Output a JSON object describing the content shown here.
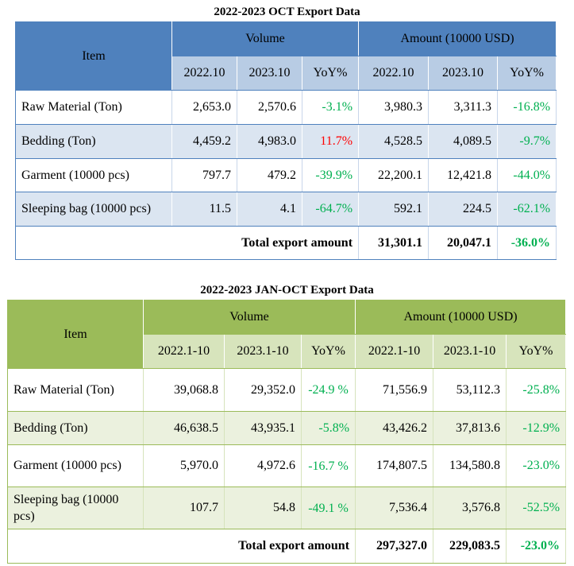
{
  "table1": {
    "title": "2022-2023 OCT Export Data",
    "item_header": "Item",
    "volume_header": "Volume",
    "amount_header": "Amount (10000 USD)",
    "subheaders": [
      "2022.10",
      "2023.10",
      "YoY%",
      "2022.10",
      "2023.10",
      "YoY%"
    ],
    "rows": [
      {
        "item": "Raw Material (Ton)",
        "v1": "2,653.0",
        "v2": "2,570.6",
        "vy": "-3.1%",
        "a1": "3,980.3",
        "a2": "3,311.3",
        "ay": "-16.8%"
      },
      {
        "item": "Bedding (Ton)",
        "v1": "4,459.2",
        "v2": "4,983.0",
        "vy": "11.7%",
        "a1": "4,528.5",
        "a2": "4,089.5",
        "ay": "-9.7%"
      },
      {
        "item": "Garment (10000 pcs)",
        "v1": "797.7",
        "v2": "479.2",
        "vy": "-39.9%",
        "a1": "22,200.1",
        "a2": "12,421.8",
        "ay": "-44.0%"
      },
      {
        "item": "Sleeping bag (10000 pcs)",
        "v1": "11.5",
        "v2": "4.1",
        "vy": "-64.7%",
        "a1": "592.1",
        "a2": "224.5",
        "ay": "-62.1%"
      }
    ],
    "total": {
      "label": "Total  export  amount",
      "a1": "31,301.1",
      "a2": "20,047.1",
      "ay": "-36.0%"
    }
  },
  "table2": {
    "title": "2022-2023 JAN-OCT Export Data",
    "item_header": "Item",
    "volume_header": "Volume",
    "amount_header": "Amount (10000 USD)",
    "subheaders": [
      "2022.1-10",
      "2023.1-10",
      "YoY%",
      "2022.1-10",
      "2023.1-10",
      "YoY%"
    ],
    "rows": [
      {
        "item": "Raw Material (Ton)",
        "v1": "39,068.8",
        "v2": "29,352.0",
        "vy": "-24.9 %",
        "a1": "71,556.9",
        "a2": "53,112.3",
        "ay": "-25.8%"
      },
      {
        "item": "Bedding (Ton)",
        "v1": "46,638.5",
        "v2": "43,935.1",
        "vy": "-5.8%",
        "a1": "43,426.2",
        "a2": "37,813.6",
        "ay": "-12.9%"
      },
      {
        "item": "Garment (10000 pcs)",
        "v1": "5,970.0",
        "v2": "4,972.6",
        "vy": "-16.7 %",
        "a1": "174,807.5",
        "a2": "134,580.8",
        "ay": "-23.0%"
      },
      {
        "item": "Sleeping bag (10000 pcs)",
        "v1": "107.7",
        "v2": "54.8",
        "vy": "-49.1 %",
        "a1": "7,536.4",
        "a2": "3,576.8",
        "ay": "-52.5%"
      }
    ],
    "total": {
      "label": "Total export amount",
      "a1": "297,327.0",
      "a2": "229,083.5",
      "ay": "-23.0%"
    }
  },
  "colors": {
    "positive": "#ff0000",
    "negative": "#00b050",
    "blue_header": "#4f81bd",
    "green_header": "#9bbb59"
  }
}
